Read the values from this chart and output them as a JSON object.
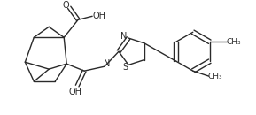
{
  "background_color": "#ffffff",
  "line_color": "#2a2a2a",
  "line_width": 1.0,
  "figsize": [
    2.89,
    1.3
  ],
  "dpi": 100,
  "xlim": [
    0,
    289
  ],
  "ylim": [
    0,
    130
  ]
}
